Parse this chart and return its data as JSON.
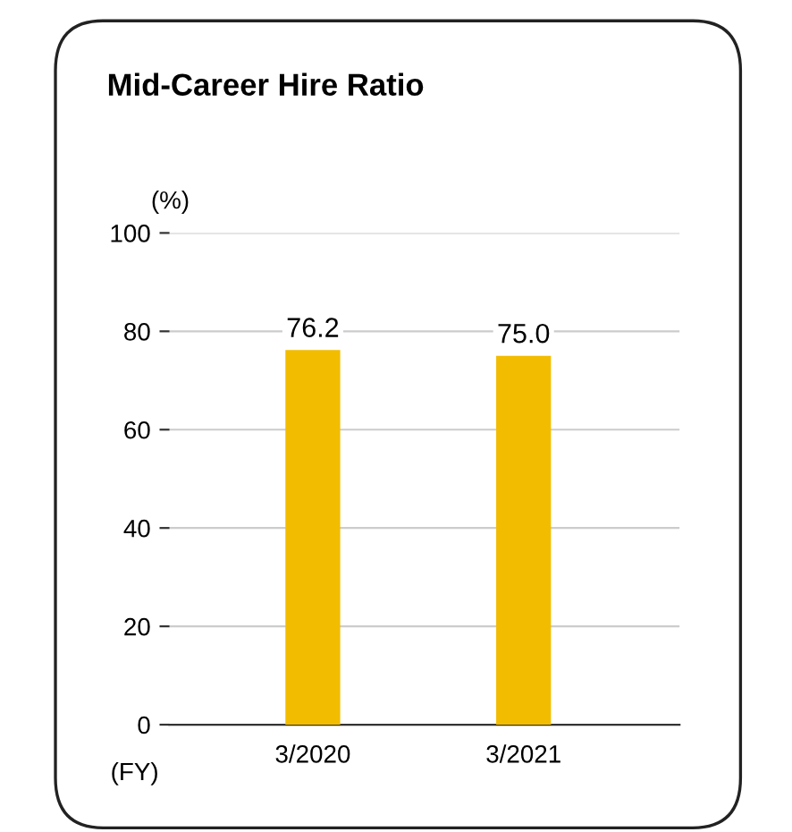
{
  "chart_data": {
    "type": "bar",
    "title": "Mid-Career Hire Ratio",
    "ylabel": "(%)",
    "xlabel": "(FY)",
    "categories": [
      "3/2020",
      "3/2021"
    ],
    "series": [
      {
        "color": "#f2bc00",
        "values": [
          76.2,
          75.0
        ]
      }
    ],
    "value_labels": [
      "76.2",
      "75.0"
    ],
    "ylim": [
      0,
      100
    ],
    "yticks": [
      0,
      20,
      40,
      60,
      80,
      100
    ],
    "grid": "y",
    "legend": false
  }
}
